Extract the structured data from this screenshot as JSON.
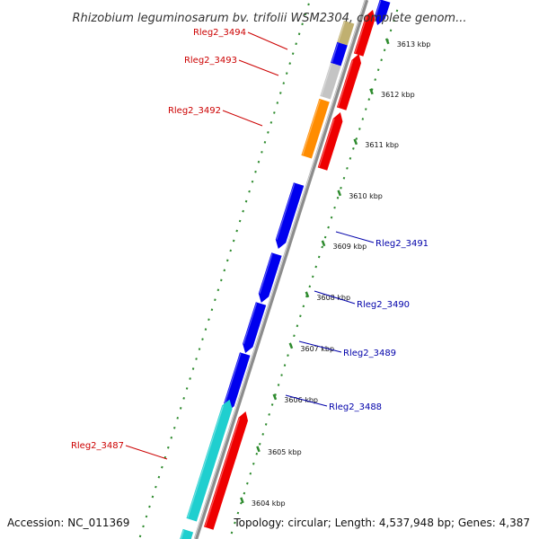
{
  "title": "Rhizobium leguminosarum bv. trifolii WSM2304, complete genom...",
  "footer": {
    "accession": "Accession: NC_011369",
    "topology": "Topology: circular; Length: 4,537,948 bp; Genes: 4,387"
  },
  "colors": {
    "backbone": "#8c8c8c",
    "tick": "#2e8b2e",
    "blue": "#0000ee",
    "red": "#ee0000",
    "cyan": "#1fcfcf",
    "gray": "#c4c4c4",
    "orange": "#ff8c00",
    "olive": "#c0b070",
    "label_left": "#cc0000",
    "label_right": "#0000aa"
  },
  "ticks": [
    "3613 kbp",
    "3612 kbp",
    "3611 kbp",
    "3610 kbp",
    "3609 kbp",
    "3608 kbp",
    "3607 kbp",
    "3606 kbp",
    "3605 kbp",
    "3604 kbp"
  ],
  "labels_left": [
    "Rleg2_3494",
    "Rleg2_3493",
    "Rleg2_3492",
    "Rleg2_3487"
  ],
  "labels_right": [
    "Rleg2_3491",
    "Rleg2_3490",
    "Rleg2_3489",
    "Rleg2_3488"
  ]
}
